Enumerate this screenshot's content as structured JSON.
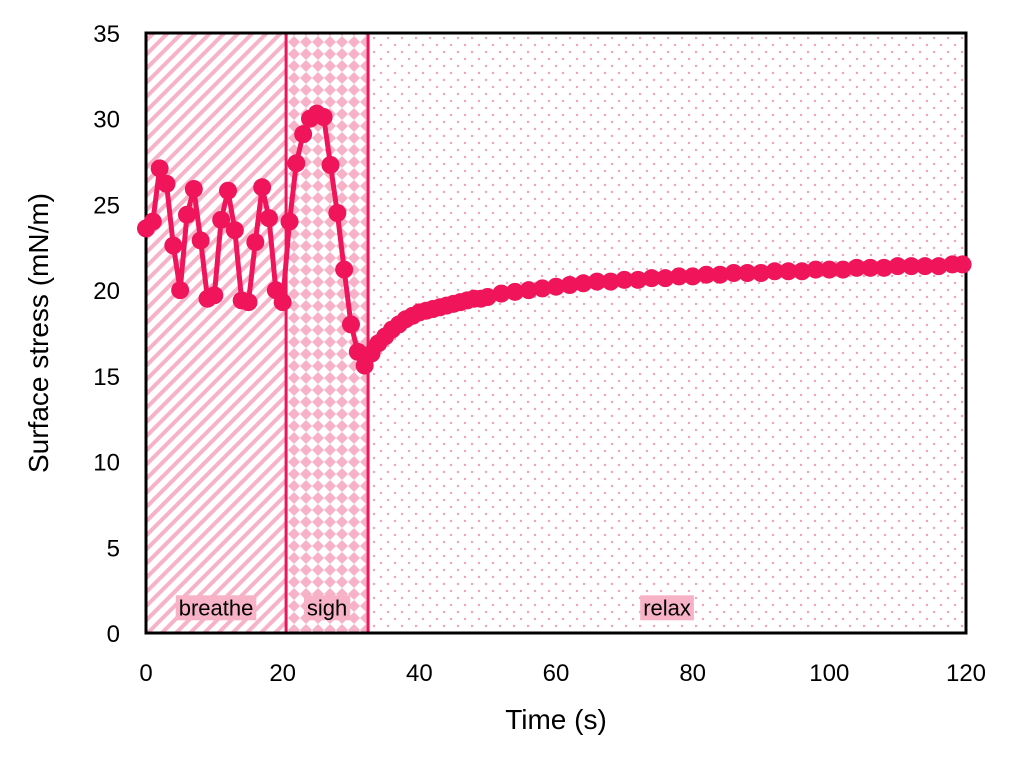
{
  "chart_data": {
    "type": "line",
    "xlabel": "Time (s)",
    "ylabel": "Surface stress (mN/m)",
    "xlim": [
      0,
      120
    ],
    "ylim": [
      0,
      35
    ],
    "xticks": [
      0,
      20,
      40,
      60,
      80,
      100,
      120
    ],
    "yticks": [
      0,
      5,
      10,
      15,
      20,
      25,
      30,
      35
    ],
    "grid": false,
    "legend": "none",
    "colors": {
      "series": "#f0145a",
      "breathe_hatch": "#f7b2c8",
      "sigh_pattern": "#f7b2c8",
      "relax_dots": "#f3a0bb",
      "label_bg": "#f7b2c8"
    },
    "regions": [
      {
        "label": "breathe",
        "x_start": 0,
        "x_end": 20.5,
        "pattern": "diagonal-stripes"
      },
      {
        "label": "sigh",
        "x_start": 20.5,
        "x_end": 32.5,
        "pattern": "diamonds"
      },
      {
        "label": "relax",
        "x_start": 32.5,
        "x_end": 120,
        "pattern": "dots"
      }
    ],
    "boundaries": [
      20.5,
      32.5
    ],
    "series": [
      {
        "x": [
          0,
          1,
          2,
          3,
          4,
          5,
          6,
          7,
          8,
          9,
          10,
          11,
          12,
          13,
          14,
          15,
          16,
          17,
          18,
          19,
          20,
          21,
          22,
          23,
          24,
          25,
          26,
          27,
          28,
          29,
          30,
          31,
          32,
          33,
          34,
          35,
          36,
          37,
          38,
          39,
          40,
          41,
          42,
          43,
          44,
          45,
          46,
          47,
          48,
          49,
          50,
          52,
          54,
          56,
          58,
          60,
          62,
          64,
          66,
          68,
          70,
          72,
          74,
          76,
          78,
          80,
          82,
          84,
          86,
          88,
          90,
          92,
          94,
          96,
          98,
          100,
          102,
          104,
          106,
          108,
          110,
          112,
          114,
          116,
          118,
          119.5
        ],
        "y": [
          23.6,
          24.0,
          27.1,
          26.2,
          22.6,
          20.0,
          24.4,
          25.9,
          22.9,
          19.5,
          19.7,
          24.1,
          25.8,
          23.5,
          19.4,
          19.3,
          22.8,
          26.0,
          24.2,
          20.0,
          19.3,
          24.0,
          27.4,
          29.1,
          30.0,
          30.3,
          30.1,
          27.3,
          24.5,
          21.2,
          18.0,
          16.4,
          15.6,
          16.3,
          16.9,
          17.3,
          17.7,
          18.0,
          18.3,
          18.5,
          18.7,
          18.8,
          18.9,
          19.0,
          19.1,
          19.2,
          19.3,
          19.4,
          19.5,
          19.5,
          19.6,
          19.8,
          19.9,
          20.0,
          20.1,
          20.2,
          20.3,
          20.4,
          20.5,
          20.5,
          20.6,
          20.6,
          20.7,
          20.7,
          20.8,
          20.8,
          20.9,
          20.9,
          21.0,
          21.0,
          21.0,
          21.1,
          21.1,
          21.1,
          21.2,
          21.2,
          21.2,
          21.3,
          21.3,
          21.3,
          21.4,
          21.4,
          21.4,
          21.4,
          21.5,
          21.5
        ]
      }
    ]
  }
}
